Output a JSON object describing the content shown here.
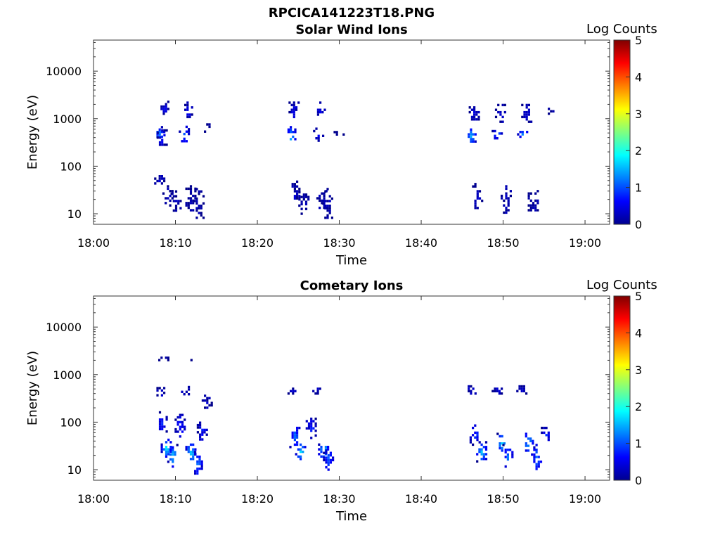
{
  "figure": {
    "title": "RPCICA141223T18.PNG"
  },
  "colorbar": {
    "label": "Log Counts",
    "ticks": [
      "0",
      "1",
      "2",
      "3",
      "4",
      "5"
    ],
    "range": [
      0,
      5
    ],
    "colormap": "jet"
  },
  "chart_data": [
    {
      "type": "heatmap",
      "title": "Solar Wind Ions",
      "xlabel": "Time",
      "ylabel": "Energy (eV)",
      "x_ticks": [
        "18:00",
        "18:10",
        "18:20",
        "18:30",
        "18:40",
        "18:50",
        "19:00"
      ],
      "y_ticks": [
        "10",
        "100",
        "1000",
        "10000"
      ],
      "y_scale": "log",
      "xlim_minutes_after_18": [
        0,
        63
      ],
      "ylim": [
        6,
        45000
      ],
      "cells": [
        {
          "t": 8.0,
          "e_low": 350,
          "e_high": 700,
          "level": 1.4
        },
        {
          "t": 8.3,
          "e_low": 280,
          "e_high": 600,
          "level": 0.6
        },
        {
          "t": 8.5,
          "e_low": 1200,
          "e_high": 2400,
          "level": 0.5
        },
        {
          "t": 11.0,
          "e_low": 320,
          "e_high": 800,
          "level": 1.1
        },
        {
          "t": 11.4,
          "e_low": 1000,
          "e_high": 2300,
          "level": 0.5
        },
        {
          "t": 13.8,
          "e_low": 550,
          "e_high": 800,
          "level": 0.3
        },
        {
          "t": 8.0,
          "e_low": 38,
          "e_high": 65,
          "level": 0.4
        },
        {
          "t": 9.0,
          "e_low": 15,
          "e_high": 40,
          "level": 0.3
        },
        {
          "t": 10.0,
          "e_low": 10,
          "e_high": 35,
          "level": 0.2
        },
        {
          "t": 11.8,
          "e_low": 12,
          "e_high": 40,
          "level": 0.3
        },
        {
          "t": 12.8,
          "e_low": 8,
          "e_high": 35,
          "level": 0.2
        },
        {
          "t": 24.0,
          "e_low": 280,
          "e_high": 700,
          "level": 1.6
        },
        {
          "t": 24.4,
          "e_low": 900,
          "e_high": 2300,
          "level": 0.5
        },
        {
          "t": 27.4,
          "e_low": 350,
          "e_high": 650,
          "level": 0.5
        },
        {
          "t": 27.6,
          "e_low": 1100,
          "e_high": 2300,
          "level": 0.5
        },
        {
          "t": 29.9,
          "e_low": 450,
          "e_high": 620,
          "level": 0.2
        },
        {
          "t": 24.5,
          "e_low": 14,
          "e_high": 50,
          "level": 0.3
        },
        {
          "t": 25.6,
          "e_low": 10,
          "e_high": 30,
          "level": 0.2
        },
        {
          "t": 27.8,
          "e_low": 12,
          "e_high": 40,
          "level": 0.3
        },
        {
          "t": 28.5,
          "e_low": 8,
          "e_high": 35,
          "level": 0.3
        },
        {
          "t": 46.0,
          "e_low": 300,
          "e_high": 700,
          "level": 1.5
        },
        {
          "t": 46.4,
          "e_low": 900,
          "e_high": 2300,
          "level": 0.5
        },
        {
          "t": 49.2,
          "e_low": 380,
          "e_high": 650,
          "level": 1.2
        },
        {
          "t": 49.6,
          "e_low": 900,
          "e_high": 2300,
          "level": 0.5
        },
        {
          "t": 52.3,
          "e_low": 350,
          "e_high": 700,
          "level": 1.3
        },
        {
          "t": 52.8,
          "e_low": 900,
          "e_high": 2300,
          "level": 0.5
        },
        {
          "t": 55.5,
          "e_low": 1300,
          "e_high": 1700,
          "level": 0.2
        },
        {
          "t": 46.8,
          "e_low": 12,
          "e_high": 50,
          "level": 0.3
        },
        {
          "t": 50.3,
          "e_low": 10,
          "e_high": 40,
          "level": 0.3
        },
        {
          "t": 53.6,
          "e_low": 10,
          "e_high": 40,
          "level": 0.3
        }
      ]
    },
    {
      "type": "heatmap",
      "title": "Cometary Ions",
      "xlabel": "Time",
      "ylabel": "Energy (eV)",
      "x_ticks": [
        "18:00",
        "18:10",
        "18:20",
        "18:30",
        "18:40",
        "18:50",
        "19:00"
      ],
      "y_ticks": [
        "10",
        "100",
        "1000",
        "10000"
      ],
      "y_scale": "log",
      "xlim_minutes_after_18": [
        0,
        63
      ],
      "ylim": [
        6,
        45000
      ],
      "cells": [
        {
          "t": 8.5,
          "e_low": 2000,
          "e_high": 2400,
          "level": 0.2
        },
        {
          "t": 11.6,
          "e_low": 2000,
          "e_high": 2400,
          "level": 0.2
        },
        {
          "t": 8.0,
          "e_low": 350,
          "e_high": 550,
          "level": 0.5
        },
        {
          "t": 11.0,
          "e_low": 380,
          "e_high": 650,
          "level": 0.3
        },
        {
          "t": 13.8,
          "e_low": 180,
          "e_high": 380,
          "level": 0.3
        },
        {
          "t": 8.3,
          "e_low": 60,
          "e_high": 170,
          "level": 0.8
        },
        {
          "t": 8.8,
          "e_low": 20,
          "e_high": 45,
          "level": 2.0
        },
        {
          "t": 9.6,
          "e_low": 12,
          "e_high": 35,
          "level": 1.6
        },
        {
          "t": 10.5,
          "e_low": 45,
          "e_high": 150,
          "level": 0.8
        },
        {
          "t": 11.8,
          "e_low": 15,
          "e_high": 40,
          "level": 1.8
        },
        {
          "t": 12.6,
          "e_low": 8,
          "e_high": 25,
          "level": 1.2
        },
        {
          "t": 13.2,
          "e_low": 40,
          "e_high": 130,
          "level": 0.7
        },
        {
          "t": 24.0,
          "e_low": 400,
          "e_high": 600,
          "level": 0.4
        },
        {
          "t": 27.3,
          "e_low": 380,
          "e_high": 600,
          "level": 0.4
        },
        {
          "t": 24.5,
          "e_low": 30,
          "e_high": 90,
          "level": 1.2
        },
        {
          "t": 25.2,
          "e_low": 15,
          "e_high": 40,
          "level": 1.7
        },
        {
          "t": 26.5,
          "e_low": 45,
          "e_high": 140,
          "level": 0.8
        },
        {
          "t": 28.0,
          "e_low": 18,
          "e_high": 45,
          "level": 1.8
        },
        {
          "t": 28.6,
          "e_low": 10,
          "e_high": 30,
          "level": 1.1
        },
        {
          "t": 46.0,
          "e_low": 400,
          "e_high": 600,
          "level": 0.4
        },
        {
          "t": 49.2,
          "e_low": 400,
          "e_high": 600,
          "level": 0.4
        },
        {
          "t": 52.2,
          "e_low": 400,
          "e_high": 600,
          "level": 0.4
        },
        {
          "t": 46.5,
          "e_low": 35,
          "e_high": 90,
          "level": 0.9
        },
        {
          "t": 47.3,
          "e_low": 15,
          "e_high": 40,
          "level": 1.6
        },
        {
          "t": 49.8,
          "e_low": 25,
          "e_high": 60,
          "level": 1.8
        },
        {
          "t": 50.5,
          "e_low": 12,
          "e_high": 35,
          "level": 1.3
        },
        {
          "t": 53.0,
          "e_low": 25,
          "e_high": 60,
          "level": 1.7
        },
        {
          "t": 54.0,
          "e_low": 10,
          "e_high": 35,
          "level": 1.2
        },
        {
          "t": 55.2,
          "e_low": 40,
          "e_high": 80,
          "level": 0.8
        }
      ]
    }
  ]
}
